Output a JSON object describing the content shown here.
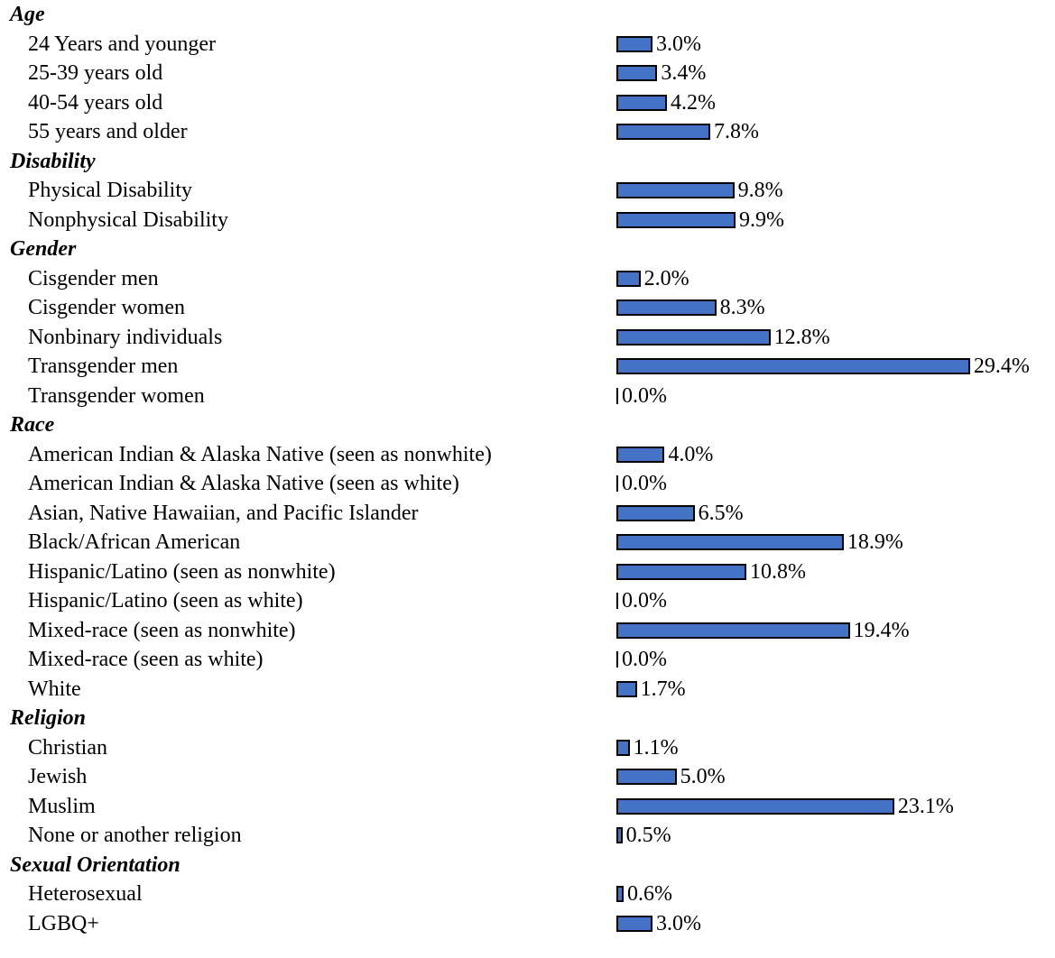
{
  "chart_data": {
    "type": "bar",
    "orientation": "horizontal",
    "bar_color": "#4472c4",
    "bar_border_color": "#000000",
    "groups": [
      {
        "title": "Age",
        "items": [
          {
            "label": "24 Years and younger",
            "value": 3.0,
            "value_label": "3.0%"
          },
          {
            "label": "25-39 years old",
            "value": 3.4,
            "value_label": "3.4%"
          },
          {
            "label": "40-54 years old",
            "value": 4.2,
            "value_label": "4.2%"
          },
          {
            "label": "55 years and older",
            "value": 7.8,
            "value_label": "7.8%"
          }
        ]
      },
      {
        "title": "Disability",
        "items": [
          {
            "label": "Physical Disability",
            "value": 9.8,
            "value_label": "9.8%"
          },
          {
            "label": "Nonphysical Disability",
            "value": 9.9,
            "value_label": "9.9%"
          }
        ]
      },
      {
        "title": "Gender",
        "items": [
          {
            "label": "Cisgender men",
            "value": 2.0,
            "value_label": "2.0%"
          },
          {
            "label": "Cisgender women",
            "value": 8.3,
            "value_label": "8.3%"
          },
          {
            "label": "Nonbinary individuals",
            "value": 12.8,
            "value_label": "12.8%"
          },
          {
            "label": "Transgender men",
            "value": 29.4,
            "value_label": "29.4%"
          },
          {
            "label": "Transgender women",
            "value": 0.0,
            "value_label": "0.0%"
          }
        ]
      },
      {
        "title": "Race",
        "items": [
          {
            "label": "American Indian & Alaska Native (seen as nonwhite)",
            "value": 4.0,
            "value_label": "4.0%"
          },
          {
            "label": "American Indian & Alaska Native (seen as white)",
            "value": 0.0,
            "value_label": "0.0%"
          },
          {
            "label": "Asian, Native Hawaiian, and Pacific Islander",
            "value": 6.5,
            "value_label": "6.5%"
          },
          {
            "label": "Black/African American",
            "value": 18.9,
            "value_label": "18.9%"
          },
          {
            "label": "Hispanic/Latino (seen as nonwhite)",
            "value": 10.8,
            "value_label": "10.8%"
          },
          {
            "label": "Hispanic/Latino (seen as white)",
            "value": 0.0,
            "value_label": "0.0%"
          },
          {
            "label": "Mixed-race (seen as nonwhite)",
            "value": 19.4,
            "value_label": "19.4%"
          },
          {
            "label": "Mixed-race (seen as white)",
            "value": 0.0,
            "value_label": "0.0%"
          },
          {
            "label": "White",
            "value": 1.7,
            "value_label": "1.7%"
          }
        ]
      },
      {
        "title": "Religion",
        "items": [
          {
            "label": "Christian",
            "value": 1.1,
            "value_label": "1.1%"
          },
          {
            "label": "Jewish",
            "value": 5.0,
            "value_label": "5.0%"
          },
          {
            "label": "Muslim",
            "value": 23.1,
            "value_label": "23.1%"
          },
          {
            "label": "None or another religion",
            "value": 0.5,
            "value_label": "0.5%"
          }
        ]
      },
      {
        "title": "Sexual Orientation",
        "items": [
          {
            "label": "Heterosexual",
            "value": 0.6,
            "value_label": "0.6%"
          },
          {
            "label": "LGBQ+",
            "value": 3.0,
            "value_label": "3.0%"
          }
        ]
      }
    ]
  }
}
